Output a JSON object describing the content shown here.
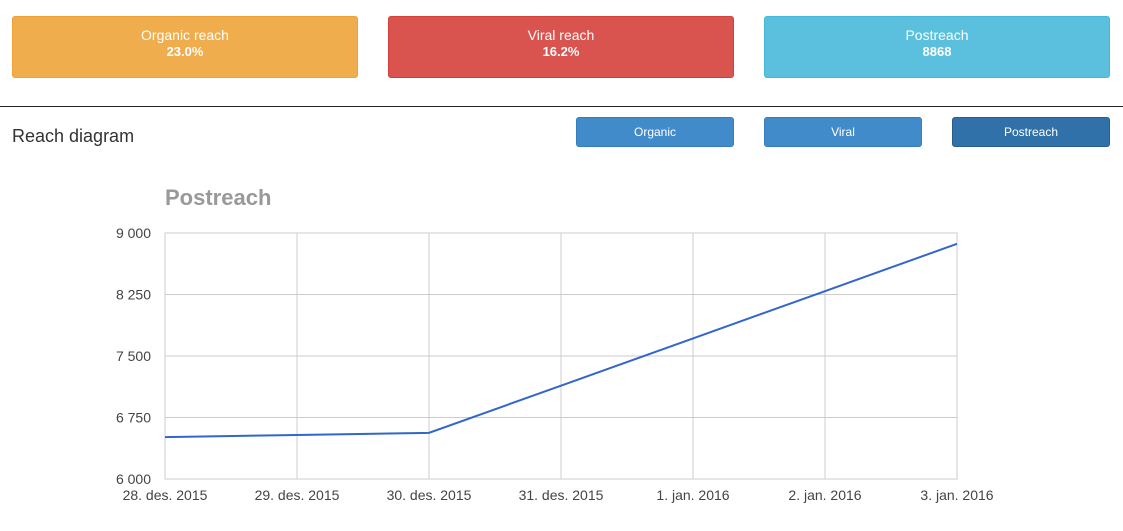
{
  "cards": {
    "organic": {
      "label": "Organic reach",
      "value": "23.0%",
      "color": "#f0ad4e"
    },
    "viral": {
      "label": "Viral reach",
      "value": "16.2%",
      "color": "#d9534f"
    },
    "post": {
      "label": "Postreach",
      "value": "8868",
      "color": "#5bc0de"
    }
  },
  "section": {
    "title": "Reach diagram"
  },
  "buttons": {
    "organic": "Organic",
    "viral": "Viral",
    "post": "Postreach"
  },
  "chart_data": {
    "type": "line",
    "title": "Postreach",
    "xlabel": "",
    "ylabel": "",
    "categories": [
      "28. des. 2015",
      "29. des. 2015",
      "30. des. 2015",
      "31. des. 2015",
      "1. jan. 2016",
      "2. jan. 2016",
      "3. jan. 2016"
    ],
    "series": [
      {
        "values": [
          6510,
          6537,
          6563,
          7138,
          7714,
          8291,
          8868
        ],
        "color": "#3366cc"
      }
    ],
    "ylim": [
      6000,
      9000
    ],
    "yticks": [
      6000,
      6750,
      7500,
      8250,
      9000
    ],
    "ytick_labels": [
      "6 000",
      "6 750",
      "7 500",
      "8 250",
      "9 000"
    ],
    "grid": true,
    "legend": "none"
  }
}
